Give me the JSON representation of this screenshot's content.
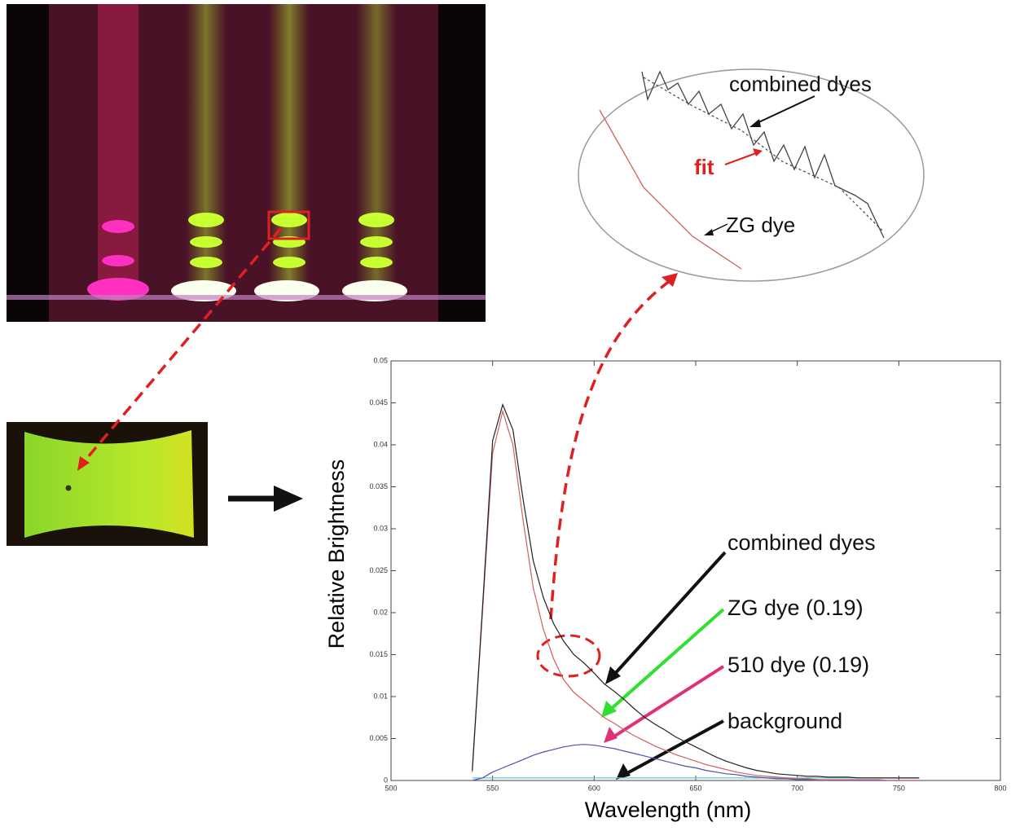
{
  "chart_data": {
    "type": "line",
    "xlabel": "Wavelength (nm)",
    "ylabel": "Relative Brightness",
    "xlim": [
      500,
      800
    ],
    "xticks": [
      500,
      550,
      600,
      650,
      700,
      750,
      800
    ],
    "ylim": [
      0,
      0.05
    ],
    "yticks": [
      0,
      0.005,
      0.01,
      0.015,
      0.02,
      0.025,
      0.03,
      0.035,
      0.04,
      0.045,
      0.05
    ],
    "x": [
      540,
      545,
      550,
      555,
      560,
      565,
      570,
      575,
      580,
      585,
      590,
      595,
      600,
      605,
      610,
      615,
      620,
      625,
      630,
      635,
      640,
      645,
      650,
      655,
      660,
      665,
      670,
      675,
      680,
      685,
      690,
      695,
      700,
      705,
      710,
      715,
      720,
      725,
      730,
      735,
      740,
      745,
      750,
      755,
      760
    ],
    "series": [
      {
        "name": "combined dyes",
        "color": "#222222",
        "values": [
          0.0012,
          0.0205,
          0.0405,
          0.0448,
          0.0418,
          0.0335,
          0.0262,
          0.0218,
          0.0187,
          0.0166,
          0.015,
          0.014,
          0.0128,
          0.0115,
          0.0106,
          0.0096,
          0.0085,
          0.0075,
          0.0067,
          0.006,
          0.0052,
          0.0046,
          0.004,
          0.0034,
          0.0028,
          0.0023,
          0.0019,
          0.0015,
          0.0012,
          0.001,
          0.0008,
          0.0007,
          0.0006,
          0.0005,
          0.0005,
          0.0004,
          0.0004,
          0.0004,
          0.0003,
          0.0003,
          0.0003,
          0.0003,
          0.0003,
          0.0003,
          0.0003
        ]
      },
      {
        "name": "ZG dye (0.19)",
        "color": "#d06060",
        "values": [
          0.001,
          0.02,
          0.039,
          0.044,
          0.04,
          0.031,
          0.023,
          0.018,
          0.0145,
          0.012,
          0.0105,
          0.0095,
          0.0085,
          0.0075,
          0.0068,
          0.006,
          0.0053,
          0.0047,
          0.0041,
          0.0036,
          0.0031,
          0.0027,
          0.0023,
          0.0019,
          0.0016,
          0.0013,
          0.001,
          0.0008,
          0.0006,
          0.0005,
          0.0004,
          0.0003,
          0.0002,
          0.0002,
          0.0001,
          0.0001,
          0.0001,
          0.0001,
          0.0001,
          0.0001,
          0.0001,
          0,
          0,
          0,
          0
        ]
      },
      {
        "name": "510 dye (0.19)",
        "color": "#5050b0",
        "values": [
          0,
          0.0003,
          0.001,
          0.0015,
          0.002,
          0.0025,
          0.003,
          0.0034,
          0.0037,
          0.004,
          0.0042,
          0.0043,
          0.0042,
          0.004,
          0.0038,
          0.0035,
          0.0032,
          0.0029,
          0.0026,
          0.0023,
          0.002,
          0.0017,
          0.0015,
          0.0012,
          0.001,
          0.0008,
          0.0007,
          0.0005,
          0.0004,
          0.0003,
          0.0002,
          0.0002,
          0.0001,
          0.0001,
          0.0001,
          0,
          0,
          0,
          0,
          0,
          0,
          0,
          0,
          0,
          0
        ]
      },
      {
        "name": "background",
        "color": "#60c8d0",
        "values": [
          0.0003,
          0.0003,
          0.0003,
          0.0003,
          0.0003,
          0.0003,
          0.0003,
          0.0003,
          0.0003,
          0.0003,
          0.0003,
          0.0003,
          0.0003,
          0.0003,
          0.0003,
          0.0003,
          0.0003,
          0.0003,
          0.0003,
          0.0003,
          0.0003,
          0.0003,
          0.0003,
          0.0003,
          0.0003,
          0.0003,
          0.0003,
          0.0003,
          0.0003,
          0.0003,
          0.0003,
          0.0003,
          0.0003,
          0.0003,
          0.0003,
          0.0003,
          0.0003,
          0.0003,
          0.0003,
          0.0003,
          0.0003,
          0.0003,
          0.0003,
          0.0003,
          0.0003
        ]
      }
    ],
    "inset_labels": [
      "combined dyes",
      "fit",
      "ZG dye"
    ]
  }
}
